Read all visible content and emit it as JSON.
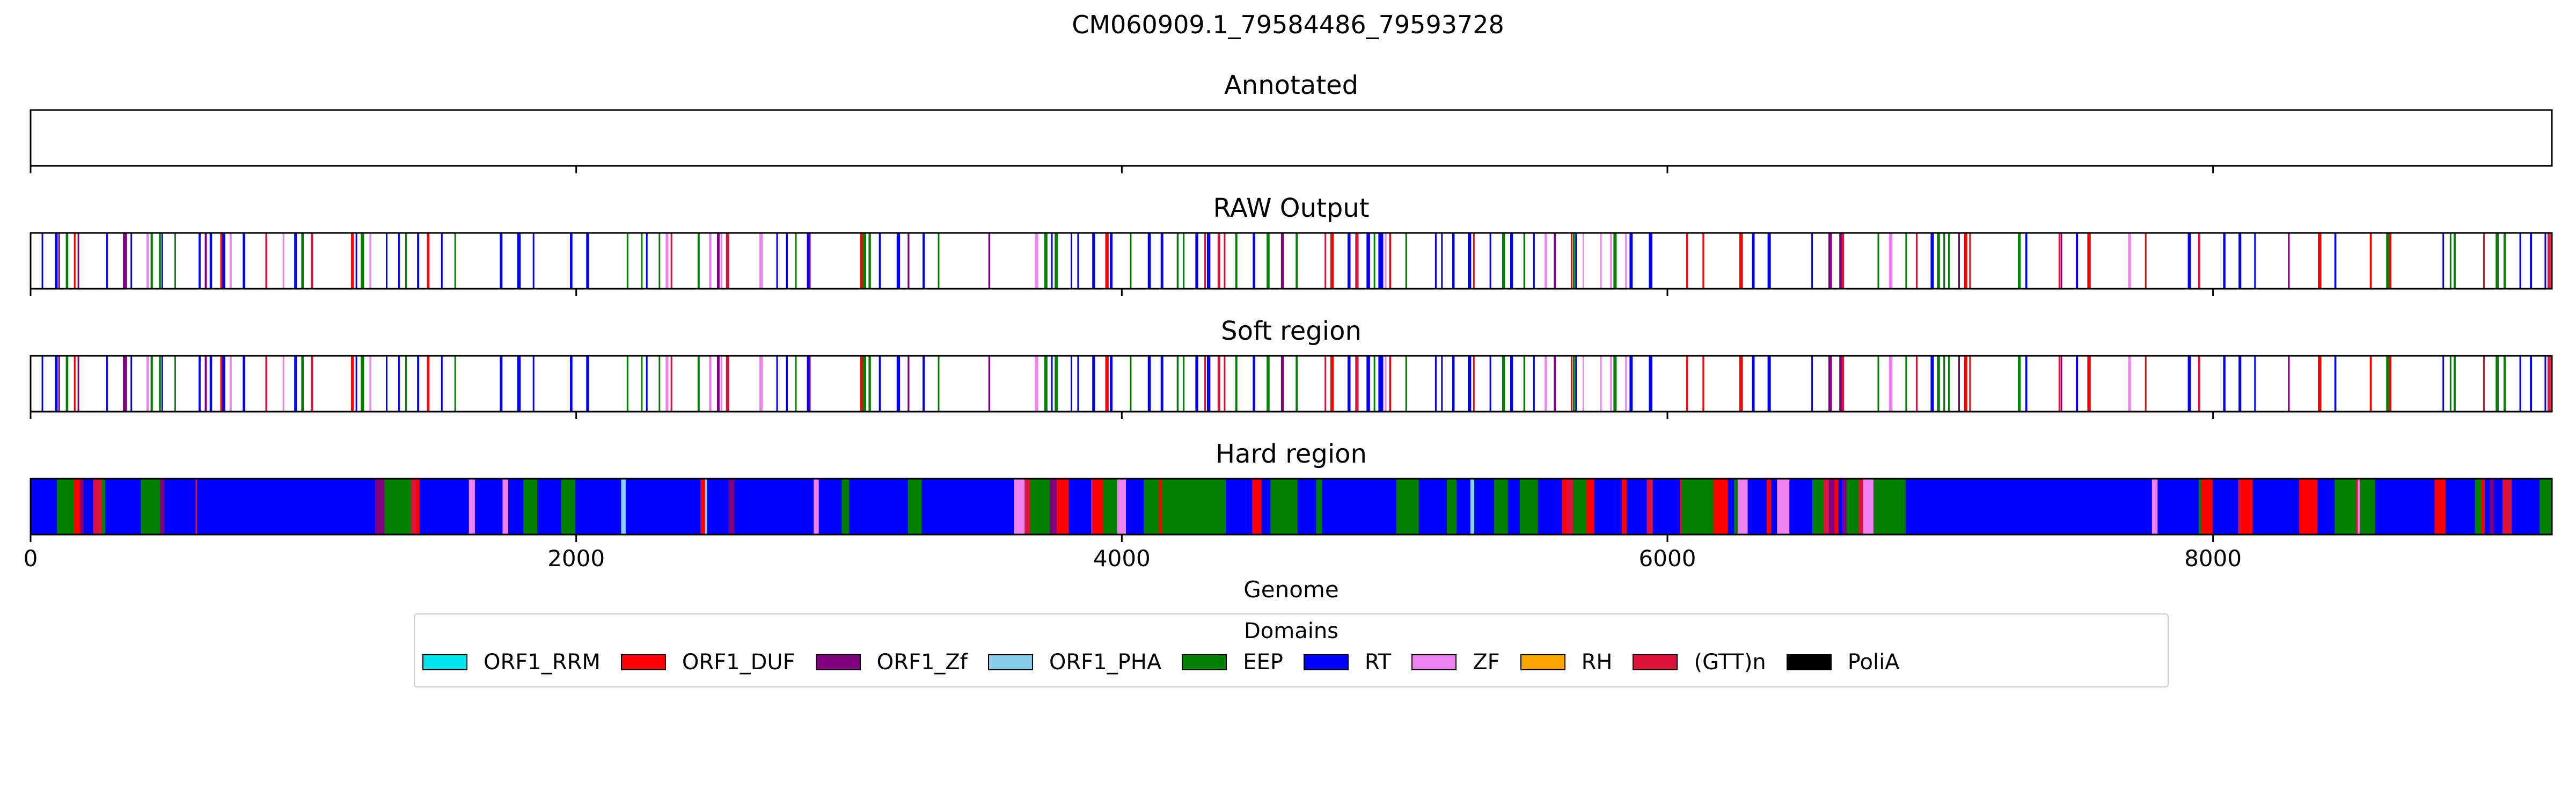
{
  "chart_data": {
    "type": "bar",
    "title": "CM060909.1_79584486_79593728",
    "xlabel": "Genome",
    "xlim": [
      0,
      9242
    ],
    "xticks": [
      0,
      2000,
      4000,
      6000,
      8000
    ],
    "tick_labels": [
      "0",
      "2000",
      "4000",
      "6000",
      "8000"
    ],
    "panels": [
      {
        "title": "Annotated",
        "segments": []
      },
      {
        "title": "RAW Output",
        "seed": 11,
        "mode": "sparse"
      },
      {
        "title": "Soft region",
        "seed": 11,
        "mode": "sparse"
      },
      {
        "title": "Hard region",
        "seed": 29,
        "mode": "dense"
      }
    ],
    "legend": {
      "title": "Domains",
      "placement": "below plot",
      "items": [
        {
          "name": "ORF1_RRM",
          "color": "#00e5ee"
        },
        {
          "name": "ORF1_DUF",
          "color": "#ff0000"
        },
        {
          "name": "ORF1_Zf",
          "color": "#800080"
        },
        {
          "name": "ORF1_PHA",
          "color": "#87ceeb"
        },
        {
          "name": "EEP",
          "color": "#008000"
        },
        {
          "name": "RT",
          "color": "#0000ff"
        },
        {
          "name": "ZF",
          "color": "#ee82ee"
        },
        {
          "name": "RH",
          "color": "#ffa500"
        },
        {
          "name": "(GTT)n",
          "color": "#dc143c"
        },
        {
          "name": "PoliA",
          "color": "#000000"
        }
      ]
    }
  }
}
